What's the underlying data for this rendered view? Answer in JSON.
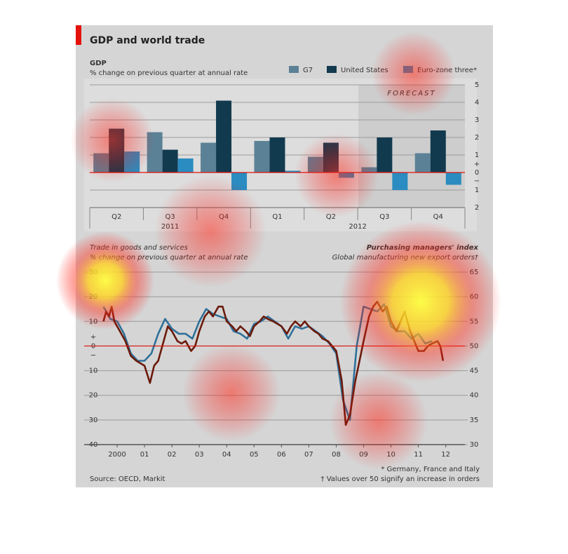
{
  "header": {
    "title": "GDP and world trade"
  },
  "chart_data": [
    {
      "type": "bar",
      "title": "GDP",
      "subtitle": "% change on previous quarter at annual rate",
      "categories": [
        "Q2",
        "Q3",
        "Q4",
        "Q1",
        "Q2",
        "Q3",
        "Q4"
      ],
      "category_groups": [
        "2011",
        "2012"
      ],
      "annotation": "FORECAST",
      "axis_signs": [
        "+",
        "−"
      ],
      "series": [
        {
          "name": "G7",
          "color": "#5b8196",
          "values": [
            1.1,
            2.3,
            1.7,
            1.8,
            0.9,
            0.3,
            1.1
          ]
        },
        {
          "name": "United States",
          "color": "#123a4e",
          "values": [
            2.5,
            1.3,
            4.1,
            2.0,
            1.7,
            2.0,
            2.4
          ]
        },
        {
          "name": "Euro-zone three*",
          "color": "#2a8cc0",
          "values": [
            1.2,
            0.8,
            -1.0,
            0.1,
            -0.3,
            -1.0,
            -0.7
          ]
        }
      ],
      "ylim": [
        -2,
        5
      ],
      "yticks": [
        {
          "value": -2,
          "label": "2"
        },
        {
          "value": -1,
          "label": "1"
        },
        0,
        1,
        2,
        3,
        4,
        5
      ],
      "grid": true
    },
    {
      "type": "line",
      "title": "Trade in goods and services",
      "subtitle": "% change on previous quarter at annual rate",
      "y2_title": "Purchasing managers' index",
      "y2_subtitle": "Global manufacturing new export orders†",
      "axis_signs": [
        "+",
        "−"
      ],
      "xlim": [
        1999.5,
        2013.2
      ],
      "xticks": [
        {
          "value": 2000.5,
          "label": "2000"
        },
        {
          "value": 2001.5,
          "label": "01"
        },
        {
          "value": 2002.5,
          "label": "02"
        },
        {
          "value": 2003.5,
          "label": "03"
        },
        {
          "value": 2004.5,
          "label": "04"
        },
        {
          "value": 2005.5,
          "label": "05"
        },
        {
          "value": 2006.5,
          "label": "06"
        },
        {
          "value": 2007.5,
          "label": "07"
        },
        {
          "value": 2008.5,
          "label": "08"
        },
        {
          "value": 2009.5,
          "label": "09"
        },
        {
          "value": 2010.5,
          "label": "10"
        },
        {
          "value": 2011.5,
          "label": "11"
        },
        {
          "value": 2012.5,
          "label": "12"
        }
      ],
      "ylim": [
        -40,
        30
      ],
      "yticks": [
        {
          "value": -40,
          "label": "40"
        },
        {
          "value": -30,
          "label": "30"
        },
        {
          "value": -20,
          "label": "20"
        },
        {
          "value": -10,
          "label": "10"
        },
        0,
        10,
        20,
        30
      ],
      "y2lim": [
        30,
        65
      ],
      "y2ticks": [
        30,
        35,
        40,
        45,
        50,
        55,
        60,
        65
      ],
      "grid": true,
      "series": [
        {
          "name": "Trade in goods and services",
          "color": "#2f7099",
          "x": [
            2000.0,
            2000.25,
            2000.5,
            2000.75,
            2001.0,
            2001.25,
            2001.5,
            2001.75,
            2002.0,
            2002.25,
            2002.5,
            2002.75,
            2003.0,
            2003.25,
            2003.5,
            2003.75,
            2004.0,
            2004.25,
            2004.5,
            2004.75,
            2005.0,
            2005.25,
            2005.5,
            2005.75,
            2006.0,
            2006.25,
            2006.5,
            2006.75,
            2007.0,
            2007.25,
            2007.5,
            2007.75,
            2008.0,
            2008.25,
            2008.5,
            2008.75,
            2009.0,
            2009.25,
            2009.5,
            2009.75,
            2010.0,
            2010.25,
            2010.5,
            2010.75,
            2011.0,
            2011.25,
            2011.5,
            2011.75,
            2012.0
          ],
          "values": [
            16,
            11,
            10,
            5,
            -3,
            -6,
            -6,
            -3,
            5,
            11,
            7,
            5,
            5,
            3,
            10,
            15,
            13,
            12,
            11,
            6,
            5,
            3,
            9,
            10,
            12,
            10,
            8,
            3,
            8,
            7,
            8,
            6,
            4,
            1,
            -3,
            -22,
            -30,
            0,
            16,
            15,
            14,
            17,
            8,
            6,
            6,
            3,
            5,
            1,
            2
          ]
        },
        {
          "name": "Purchasing managers' index",
          "color": "#6b1a0b",
          "axis": "y2",
          "x": [
            2000.0,
            2000.1,
            2000.2,
            2000.3,
            2000.4,
            2000.6,
            2000.8,
            2001.0,
            2001.2,
            2001.35,
            2001.5,
            2001.7,
            2001.85,
            2002.0,
            2002.2,
            2002.35,
            2002.5,
            2002.7,
            2002.85,
            2003.0,
            2003.2,
            2003.35,
            2003.5,
            2003.7,
            2003.85,
            2004.0,
            2004.2,
            2004.35,
            2004.5,
            2004.7,
            2004.85,
            2005.0,
            2005.2,
            2005.35,
            2005.5,
            2005.7,
            2005.85,
            2006.0,
            2006.2,
            2006.35,
            2006.5,
            2006.7,
            2006.85,
            2007.0,
            2007.2,
            2007.35,
            2007.5,
            2007.7,
            2007.85,
            2008.0,
            2008.2,
            2008.35,
            2008.5,
            2008.7,
            2008.85,
            2009.0,
            2009.2,
            2009.35,
            2009.5,
            2009.7,
            2009.85,
            2010.0,
            2010.2,
            2010.35,
            2010.5,
            2010.7,
            2010.85,
            2011.0,
            2011.2,
            2011.35,
            2011.5,
            2011.7,
            2011.85,
            2012.0,
            2012.2,
            2012.3,
            2012.4
          ],
          "values": [
            55,
            57,
            56,
            58,
            55,
            53,
            51,
            48,
            47,
            46.5,
            46,
            42.5,
            46,
            47,
            51,
            54,
            53,
            51,
            50.5,
            51,
            49,
            50,
            53,
            56,
            57,
            56,
            58,
            58,
            55,
            54,
            53,
            54,
            53,
            52,
            54,
            55,
            56,
            55.5,
            55,
            54.5,
            54,
            52.5,
            54,
            55,
            54,
            55,
            54,
            53,
            52.5,
            51.5,
            51,
            50,
            49,
            43,
            34,
            36,
            43,
            47,
            51,
            56,
            58,
            59,
            57,
            58,
            55,
            53,
            55,
            57,
            53,
            51,
            49,
            49,
            50,
            50.5,
            51,
            50,
            47
          ]
        }
      ]
    }
  ],
  "footer": {
    "source": "Source: OECD, Markit",
    "notes": [
      "* Germany, France and Italy",
      "† Values over 50 signify an increase in orders"
    ]
  }
}
